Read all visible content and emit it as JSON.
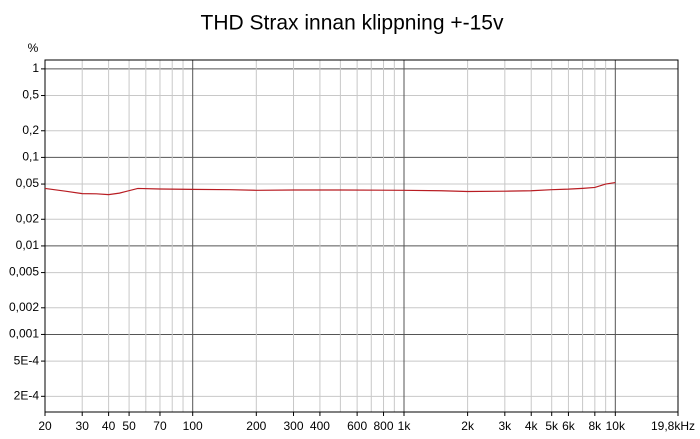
{
  "chart_data": {
    "type": "line",
    "title": "THD Strax innan klippning +-15v",
    "y_label": "%",
    "x": [
      20,
      25,
      30,
      35,
      40,
      45,
      55,
      70,
      100,
      150,
      200,
      300,
      500,
      1000,
      1500,
      2000,
      3000,
      4000,
      5000,
      6000,
      7000,
      8000,
      9000,
      10000
    ],
    "series": [
      {
        "name": "THD",
        "color": "#b81c22",
        "values": [
          0.0446,
          0.0415,
          0.039,
          0.0388,
          0.038,
          0.0395,
          0.0446,
          0.044,
          0.0435,
          0.0432,
          0.0425,
          0.0428,
          0.0428,
          0.0425,
          0.042,
          0.0412,
          0.0415,
          0.042,
          0.0432,
          0.0438,
          0.0447,
          0.0458,
          0.05,
          0.052
        ]
      }
    ],
    "xlim": [
      20,
      19800
    ],
    "ylim": [
      0.000133,
      1.26
    ],
    "log_x": true,
    "log_y": true,
    "grid": true,
    "xticks": [
      20,
      30,
      40,
      50,
      70,
      100,
      200,
      300,
      400,
      600,
      800,
      {
        "value": 1000,
        "label": "1k"
      },
      {
        "value": 2000,
        "label": "2k"
      },
      {
        "value": 3000,
        "label": "3k"
      },
      {
        "value": 4000,
        "label": "4k"
      },
      {
        "value": 5000,
        "label": "5k"
      },
      {
        "value": 6000,
        "label": "6k"
      },
      {
        "value": 8000,
        "label": "8k"
      },
      {
        "value": 10000,
        "label": "10k"
      },
      {
        "value": 19800,
        "label": "19,8kHz"
      }
    ],
    "xminor": [
      60,
      80,
      90,
      500,
      700,
      900,
      7000,
      9000
    ],
    "yticks": [
      1,
      {
        "value": 0.5,
        "label": "0,5"
      },
      {
        "value": 0.2,
        "label": "0,2"
      },
      {
        "value": 0.1,
        "label": "0,1"
      },
      {
        "value": 0.05,
        "label": "0,05"
      },
      {
        "value": 0.02,
        "label": "0,02"
      },
      {
        "value": 0.01,
        "label": "0,01"
      },
      {
        "value": 0.005,
        "label": "0,005"
      },
      {
        "value": 0.002,
        "label": "0,002"
      },
      {
        "value": 0.001,
        "label": "0,001"
      },
      {
        "value": 0.0005,
        "label": "5E-4"
      },
      {
        "value": 0.0002,
        "label": "2E-4"
      }
    ]
  }
}
